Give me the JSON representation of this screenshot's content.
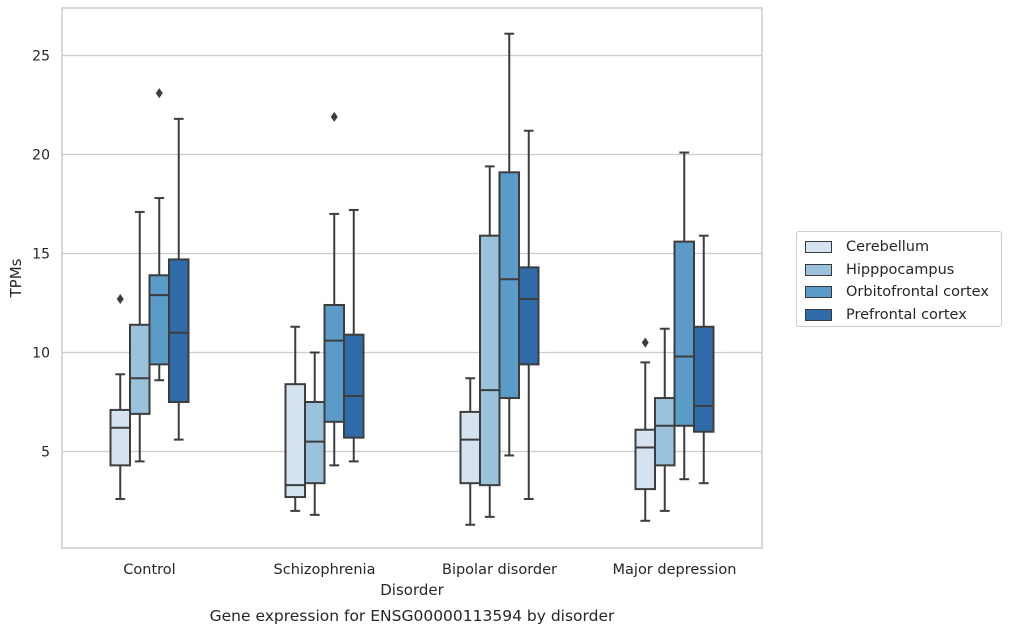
{
  "chart_data": {
    "type": "box",
    "title": "Gene expression for ENSG00000113594 by disorder",
    "xlabel": "Disorder",
    "ylabel": "TPMs",
    "ylim": [
      0,
      27.3
    ],
    "yticks": [
      5,
      10,
      15,
      20,
      25
    ],
    "grid": true,
    "legend_position": "right",
    "categories": [
      "Control",
      "Schizophrenia",
      "Bipolar disorder",
      "Major depression"
    ],
    "series": [
      {
        "name": "Cerebellum",
        "color": "#d5e3f1",
        "boxes": [
          {
            "whislo": 2.6,
            "q1": 4.3,
            "med": 6.2,
            "q3": 7.1,
            "whishi": 8.9,
            "fliers": [
              12.7
            ]
          },
          {
            "whislo": 2.0,
            "q1": 2.7,
            "med": 3.3,
            "q3": 8.4,
            "whishi": 11.3,
            "fliers": []
          },
          {
            "whislo": 1.3,
            "q1": 3.4,
            "med": 5.6,
            "q3": 7.0,
            "whishi": 8.7,
            "fliers": []
          },
          {
            "whislo": 1.5,
            "q1": 3.1,
            "med": 5.2,
            "q3": 6.1,
            "whishi": 9.5,
            "fliers": [
              10.5
            ]
          }
        ]
      },
      {
        "name": "Hipppocampus",
        "color": "#9ac2dc",
        "boxes": [
          {
            "whislo": 4.5,
            "q1": 6.9,
            "med": 8.7,
            "q3": 11.4,
            "whishi": 17.1,
            "fliers": []
          },
          {
            "whislo": 1.8,
            "q1": 3.4,
            "med": 5.5,
            "q3": 7.5,
            "whishi": 10.0,
            "fliers": []
          },
          {
            "whislo": 1.7,
            "q1": 3.3,
            "med": 8.1,
            "q3": 15.9,
            "whishi": 19.4,
            "fliers": []
          },
          {
            "whislo": 2.0,
            "q1": 4.3,
            "med": 6.3,
            "q3": 7.7,
            "whishi": 11.2,
            "fliers": []
          }
        ]
      },
      {
        "name": "Orbitofrontal cortex",
        "color": "#5a9bc7",
        "boxes": [
          {
            "whislo": 8.6,
            "q1": 9.4,
            "med": 12.9,
            "q3": 13.9,
            "whishi": 17.8,
            "fliers": [
              23.1
            ]
          },
          {
            "whislo": 4.3,
            "q1": 6.5,
            "med": 10.6,
            "q3": 12.4,
            "whishi": 17.0,
            "fliers": [
              21.9
            ]
          },
          {
            "whislo": 4.8,
            "q1": 7.7,
            "med": 13.7,
            "q3": 19.1,
            "whishi": 26.1,
            "fliers": []
          },
          {
            "whislo": 3.6,
            "q1": 6.3,
            "med": 9.8,
            "q3": 15.6,
            "whishi": 20.1,
            "fliers": []
          }
        ]
      },
      {
        "name": "Prefrontal cortex",
        "color": "#2f6ba9",
        "boxes": [
          {
            "whislo": 5.6,
            "q1": 7.5,
            "med": 11.0,
            "q3": 14.7,
            "whishi": 21.8,
            "fliers": []
          },
          {
            "whislo": 4.5,
            "q1": 5.7,
            "med": 7.8,
            "q3": 10.9,
            "whishi": 17.2,
            "fliers": []
          },
          {
            "whislo": 2.6,
            "q1": 9.4,
            "med": 12.7,
            "q3": 14.3,
            "whishi": 21.2,
            "fliers": []
          },
          {
            "whislo": 3.4,
            "q1": 6.0,
            "med": 7.3,
            "q3": 11.3,
            "whishi": 15.9,
            "fliers": []
          }
        ]
      }
    ]
  }
}
